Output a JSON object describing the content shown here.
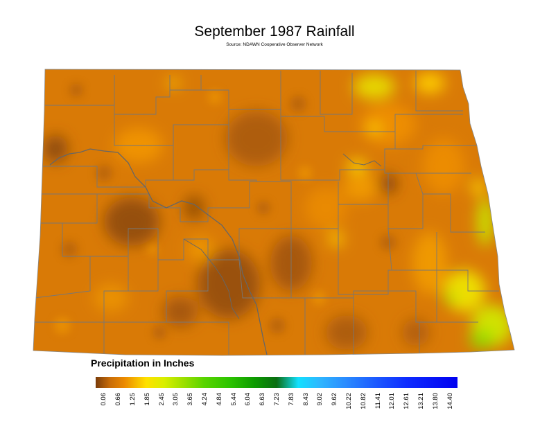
{
  "title": "September 1987 Rainfall",
  "subtitle": "Source: NDAWN Cooperative Observer Network",
  "legend": {
    "title": "Precipitation in Inches",
    "ticks": [
      "0.06",
      "0.66",
      "1.25",
      "1.85",
      "2.45",
      "3.05",
      "3.65",
      "4.24",
      "4.84",
      "5.44",
      "6.04",
      "6.63",
      "7.23",
      "7.83",
      "8.43",
      "9.02",
      "9.62",
      "10.22",
      "10.82",
      "11.41",
      "12.01",
      "12.61",
      "13.21",
      "13.80",
      "14.40"
    ]
  },
  "colors": {
    "dry_dark": "#7a3c0a",
    "dry": "#d97a06",
    "moderate": "#ffe100",
    "wet": "#9fe000",
    "very_wet": "#0a6e12",
    "cyan": "#12e0ff",
    "blue": "#0000f0",
    "county_lines": "#777777"
  }
}
